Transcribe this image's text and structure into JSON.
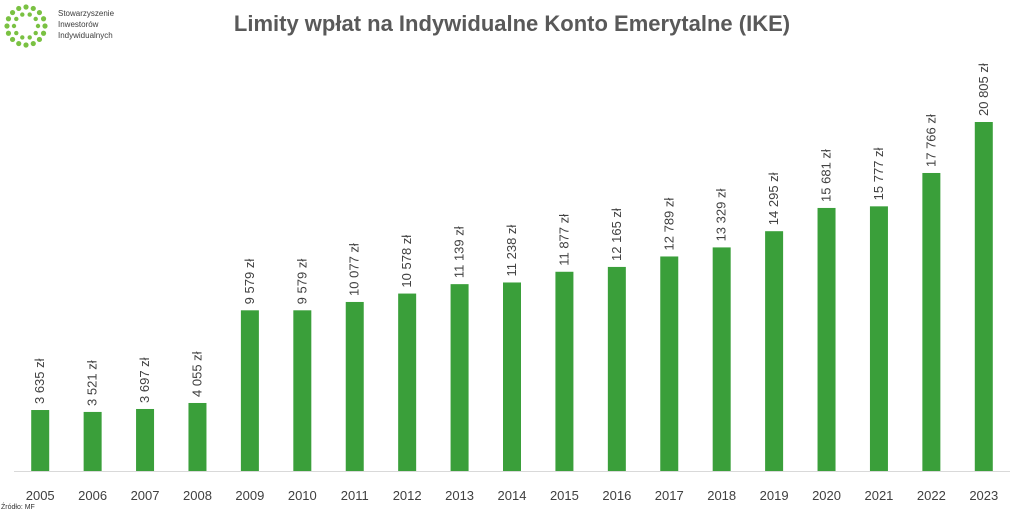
{
  "logo": {
    "name": "Stowarzyszenie Inwestorów Indywidualnych",
    "lines": [
      "Stowarzyszenie",
      "Inwestorów",
      "Indywidualnych"
    ],
    "color": "#7ac142"
  },
  "source_note": "Źródło: MF",
  "colors": {
    "bar": "#3a9f3a",
    "title": "#595959",
    "label": "#404040",
    "axis": "#d9d9d9"
  },
  "chart_data": {
    "type": "bar",
    "title": "Limity wpłat na Indywidualne Konto Emerytalne (IKE)",
    "xlabel": "",
    "ylabel": "",
    "categories": [
      "2005",
      "2006",
      "2007",
      "2008",
      "2009",
      "2010",
      "2011",
      "2012",
      "2013",
      "2014",
      "2015",
      "2016",
      "2017",
      "2018",
      "2019",
      "2020",
      "2021",
      "2022",
      "2023"
    ],
    "values": [
      3635,
      3521,
      3697,
      4055,
      9579,
      9579,
      10077,
      10578,
      11139,
      11238,
      11877,
      12165,
      12789,
      13329,
      14295,
      15681,
      15777,
      17766,
      20805
    ],
    "data_labels": [
      "3 635 zł",
      "3 521 zł",
      "3 697 zł",
      "4 055 zł",
      "9 579 zł",
      "9 579 zł",
      "10 077 zł",
      "10 578 zł",
      "11 139 zł",
      "11 238 zł",
      "11 877 zł",
      "12 165 zł",
      "12 789 zł",
      "13 329 zł",
      "14 295 zł",
      "15 681 zł",
      "15 777 zł",
      "17 766 zł",
      "20 805 zł"
    ],
    "ylim": [
      0,
      20805
    ],
    "grid": false,
    "legend": "none"
  }
}
